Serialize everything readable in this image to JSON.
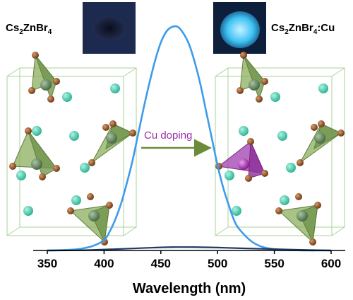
{
  "chart_data": {
    "type": "line",
    "xlabel": "Wavelength (nm)",
    "ylabel": "",
    "xlim": [
      350,
      600
    ],
    "ylim": [
      0,
      1.0
    ],
    "xticks": [
      "350",
      "400",
      "450",
      "500",
      "550",
      "600"
    ],
    "grid": false,
    "series": [
      {
        "name": "",
        "color": "#3d9bea",
        "x": [
          350,
          360,
          370,
          380,
          390,
          400,
          405,
          410,
          415,
          420,
          425,
          430,
          435,
          440,
          445,
          450,
          455,
          460,
          465,
          470,
          475,
          480,
          485,
          490,
          495,
          500,
          505,
          510,
          515,
          520,
          530,
          540,
          550,
          560,
          570,
          580,
          590,
          600
        ],
        "y": [
          0.0,
          0.001,
          0.003,
          0.008,
          0.02,
          0.046,
          0.085,
          0.14,
          0.21,
          0.3,
          0.4,
          0.52,
          0.64,
          0.75,
          0.85,
          0.93,
          0.98,
          1.0,
          1.0,
          0.97,
          0.92,
          0.84,
          0.74,
          0.62,
          0.5,
          0.38,
          0.28,
          0.2,
          0.13,
          0.09,
          0.04,
          0.015,
          0.006,
          0.002,
          0.001,
          0.0,
          0.0,
          0.0
        ]
      },
      {
        "name": "",
        "color": "#1f3864",
        "x": [
          350,
          380,
          410,
          440,
          460,
          480,
          500,
          520,
          550,
          580,
          600
        ],
        "y": [
          0.0,
          0.001,
          0.006,
          0.012,
          0.015,
          0.015,
          0.013,
          0.01,
          0.006,
          0.002,
          0.0
        ]
      }
    ]
  },
  "labels": {
    "left_compound": {
      "base": "Cs",
      "n1": "2",
      "mid": "ZnBr",
      "n2": "4",
      "suffix": ""
    },
    "right_compound": {
      "base": "Cs",
      "n1": "2",
      "mid": "ZnBr",
      "n2": "4",
      "suffix": ":Cu"
    },
    "arrow_text": "Cu doping"
  },
  "colors": {
    "cs_atom": "#45d1b0",
    "br_atom": "#9a5a2a",
    "zn_atom": "#6a8f62",
    "tetra_fill": "#8cae5e",
    "cu_tetra_fill": "#a64ab4",
    "cell_edge": "#a9d39a",
    "photo_dark": "#141b33",
    "photo_bright": "#27b4f0"
  }
}
